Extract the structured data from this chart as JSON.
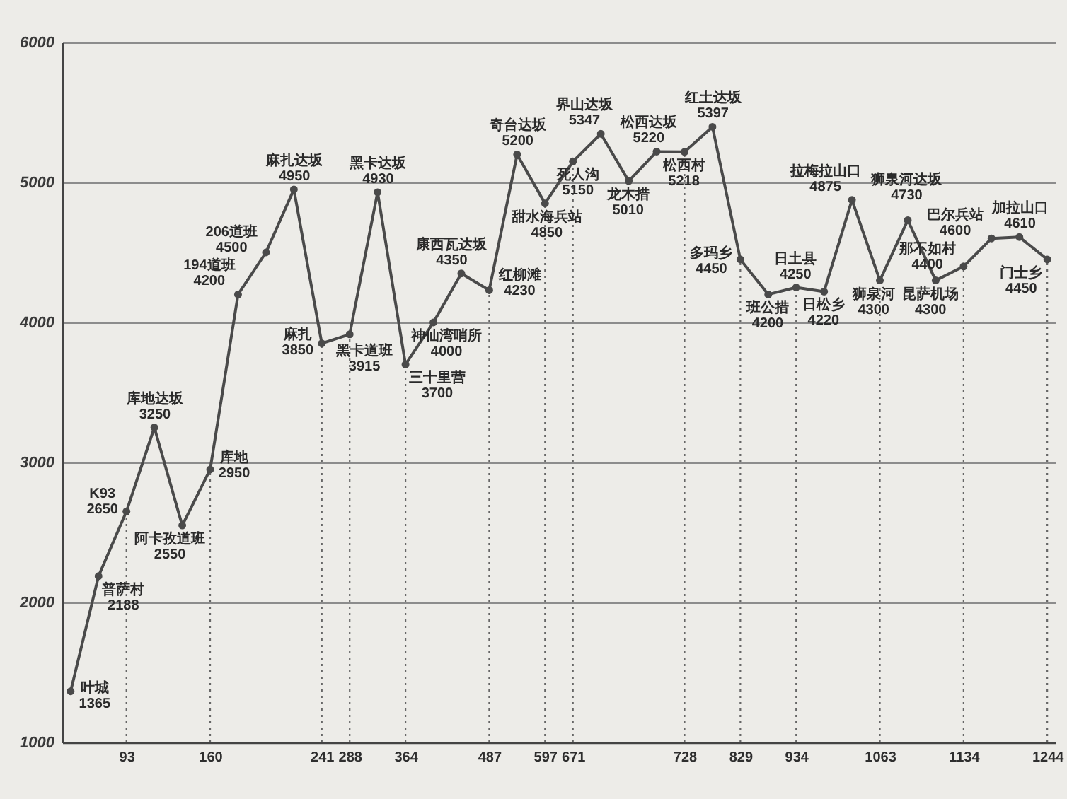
{
  "chart_data": {
    "type": "line",
    "categories": [
      null,
      null,
      "93",
      null,
      null,
      "160",
      null,
      null,
      null,
      "241",
      "288",
      null,
      "364",
      null,
      null,
      "487",
      null,
      "597",
      "671",
      null,
      null,
      null,
      "728",
      null,
      "829",
      null,
      "934",
      null,
      null,
      "1063",
      null,
      null,
      "1134",
      null,
      null,
      "1244"
    ],
    "values": [
      1365,
      2188,
      2650,
      3250,
      2550,
      2950,
      4200,
      4500,
      4950,
      3850,
      3915,
      4930,
      3700,
      4000,
      4350,
      4230,
      5200,
      4850,
      5150,
      5347,
      5010,
      5220,
      5218,
      5397,
      4450,
      4200,
      4250,
      4220,
      4875,
      4300,
      4730,
      4300,
      4400,
      4600,
      4610,
      4450
    ],
    "color": "#4a4a4a",
    "ylim": [
      1000,
      6000
    ],
    "yticks": [
      1000,
      2000,
      3000,
      4000,
      5000,
      6000
    ],
    "grid": "y",
    "marker": "circle",
    "line_style": "solid",
    "data_labels": true,
    "annotations": [
      "叶城",
      "普萨村",
      {
        "text": "K93",
        "x": "93",
        "y": 2650
      },
      "库地达坂",
      "阿卡孜道班",
      {
        "text": "库地",
        "x": "160",
        "y": 2950
      },
      "194道班",
      "206道班",
      "麻扎达坂",
      {
        "text": "麻扎",
        "x": "241",
        "y": 3850
      },
      {
        "text": "黑卡道班",
        "x": "288",
        "y": 3915
      },
      "黑卡达坂",
      {
        "text": "三十里营",
        "x": "364",
        "y": 3700
      },
      "神仙湾哨所",
      "康西瓦达坂",
      {
        "text": "红柳滩",
        "x": "487",
        "y": 4230
      },
      "奇台达坂",
      {
        "text": "甜水海兵站",
        "x": "597",
        "y": 4850
      },
      {
        "text": "死人沟",
        "x": "671",
        "y": 5150
      },
      "界山达坂",
      "龙木措",
      "松西达坂",
      {
        "text": "松西村",
        "x": "728",
        "y": 5218
      },
      "红土达坂",
      {
        "text": "多玛乡",
        "x": "829",
        "y": 4450
      },
      "班公措",
      {
        "text": "日土县",
        "x": "934",
        "y": 4250
      },
      "日松乡",
      "拉梅拉山口",
      {
        "text": "狮泉河",
        "x": "1063",
        "y": 4300
      },
      "狮泉河达坂",
      "昆萨机场",
      {
        "text": "那不如村",
        "x": "1134",
        "y": 4400
      },
      "巴尔兵站",
      "加拉山口",
      {
        "text": "门士乡",
        "x": "1244",
        "y": 4450
      }
    ],
    "ref_lines": [
      {
        "axis": "x",
        "value": "93",
        "color": "#666666",
        "line_style": "dotted"
      },
      {
        "axis": "x",
        "value": "160",
        "color": "#666666",
        "line_style": "dotted"
      },
      {
        "axis": "x",
        "value": "241",
        "color": "#666666",
        "line_style": "dotted"
      },
      {
        "axis": "x",
        "value": "288",
        "color": "#666666",
        "line_style": "dotted"
      },
      {
        "axis": "x",
        "value": "364",
        "color": "#666666",
        "line_style": "dotted"
      },
      {
        "axis": "x",
        "value": "487",
        "color": "#666666",
        "line_style": "dotted"
      },
      {
        "axis": "x",
        "value": "597",
        "color": "#666666",
        "line_style": "dotted"
      },
      {
        "axis": "x",
        "value": "671",
        "color": "#666666",
        "line_style": "dotted"
      },
      {
        "axis": "x",
        "value": "728",
        "color": "#666666",
        "line_style": "dotted"
      },
      {
        "axis": "x",
        "value": "829",
        "color": "#666666",
        "line_style": "dotted"
      },
      {
        "axis": "x",
        "value": "934",
        "color": "#666666",
        "line_style": "dotted"
      },
      {
        "axis": "x",
        "value": "1063",
        "color": "#666666",
        "line_style": "dotted"
      },
      {
        "axis": "x",
        "value": "1134",
        "color": "#666666",
        "line_style": "dotted"
      },
      {
        "axis": "x",
        "value": "1244",
        "color": "#666666",
        "line_style": "dotted"
      }
    ]
  }
}
